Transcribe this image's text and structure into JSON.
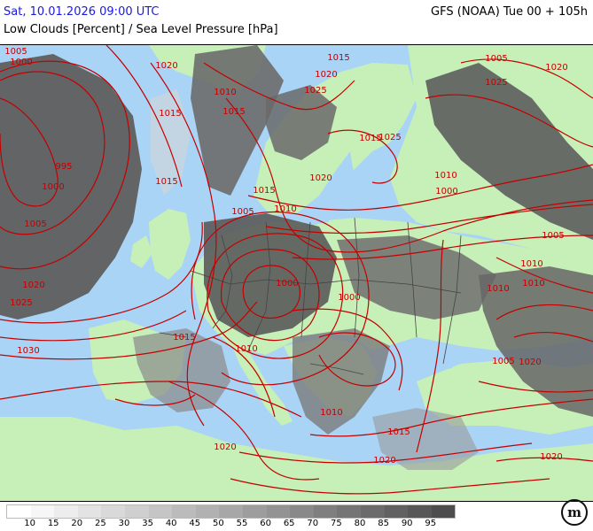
{
  "header": {
    "datetime": "Sat, 10.01.2026 09:00 UTC",
    "variable": "Low Clouds [Percent] / Sea Level Pressure [hPa]",
    "model_run": "GFS (NOAA) Tue 00 + 105h"
  },
  "colors": {
    "sea": "#a9d4f5",
    "land": "#c6f0b8",
    "isobar": "#c40000",
    "borders": "#444444"
  },
  "isobar_labels": [
    {
      "text": "1005"
    },
    {
      "text": "1000"
    },
    {
      "text": "1020"
    },
    {
      "text": "1015"
    },
    {
      "text": "1010"
    },
    {
      "text": "995"
    },
    {
      "text": "1000"
    },
    {
      "text": "1015"
    },
    {
      "text": "1005"
    },
    {
      "text": "1020"
    },
    {
      "text": "1025"
    },
    {
      "text": "1030"
    },
    {
      "text": "1015"
    },
    {
      "text": "1020"
    },
    {
      "text": "1025"
    },
    {
      "text": "1025"
    },
    {
      "text": "1020"
    },
    {
      "text": "1015"
    },
    {
      "text": "1010"
    },
    {
      "text": "1005"
    },
    {
      "text": "1010"
    },
    {
      "text": "1000"
    },
    {
      "text": "1020"
    },
    {
      "text": "1005"
    },
    {
      "text": "1025"
    },
    {
      "text": "1010"
    },
    {
      "text": "1020"
    },
    {
      "text": "1015"
    },
    {
      "text": "1020"
    },
    {
      "text": "1010"
    },
    {
      "text": "1015"
    },
    {
      "text": "1020"
    },
    {
      "text": "1010"
    },
    {
      "text": "1005"
    },
    {
      "text": "1015"
    },
    {
      "text": "1005"
    },
    {
      "text": "1010"
    },
    {
      "text": "1010"
    },
    {
      "text": "1000"
    },
    {
      "text": "1000"
    },
    {
      "text": "1015"
    },
    {
      "text": "1020"
    }
  ],
  "legend": {
    "levels": [
      "10",
      "15",
      "20",
      "25",
      "30",
      "35",
      "40",
      "45",
      "50",
      "55",
      "60",
      "65",
      "70",
      "75",
      "80",
      "85",
      "90",
      "95"
    ],
    "colors": [
      "#ffffff",
      "#f6f6f6",
      "#ededed",
      "#e3e3e3",
      "#d9d9d9",
      "#cfcfcf",
      "#c5c5c5",
      "#bbbbbb",
      "#b1b1b1",
      "#a7a7a7",
      "#9d9d9d",
      "#939393",
      "#898989",
      "#7f7f7f",
      "#757575",
      "#6b6b6b",
      "#616161",
      "#575757",
      "#4d4d4d"
    ]
  },
  "logo": {
    "text": "m"
  }
}
